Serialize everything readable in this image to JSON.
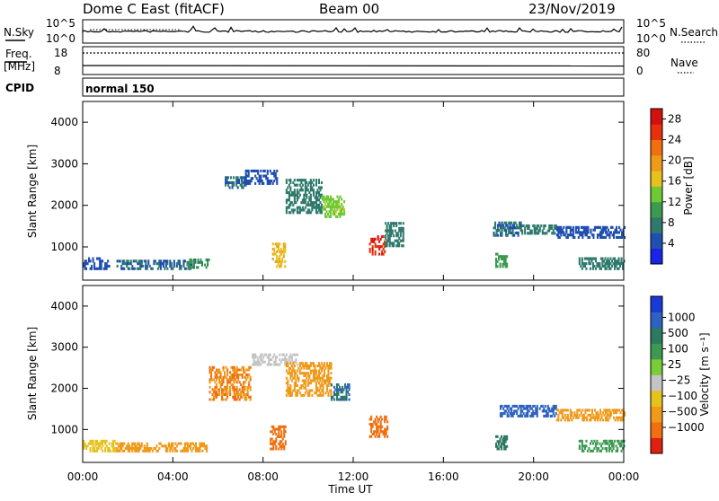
{
  "header": {
    "title": "Dome C East (fitACF)",
    "beam": "Beam 00",
    "date": "23/Nov/2019"
  },
  "sky_panel": {
    "left_label": "N.Sky",
    "right_label": "N.Search",
    "left_ticks": [
      "10^5",
      "10^0"
    ],
    "right_ticks": [
      "10^5",
      "10^0"
    ]
  },
  "freq_panel": {
    "left_label_line1": "Freq.",
    "left_label_line2": "[MHz]",
    "right_label": "Nave",
    "left_ticks": [
      "18",
      "8"
    ],
    "right_ticks": [
      "80",
      "0"
    ]
  },
  "cpid_panel": {
    "label": "CPID",
    "program": "normal 150"
  },
  "colors": {
    "power_scale": [
      "#1a24e6",
      "#1f4fb0",
      "#2f7a6c",
      "#3c9a50",
      "#70c832",
      "#e6c21c",
      "#f09a1a",
      "#f07010",
      "#e8300c",
      "#d41010"
    ],
    "velocity_scale": [
      "#1a3ad6",
      "#2f62c0",
      "#2c7a62",
      "#3c9a50",
      "#7acd38",
      "#c4c4c4",
      "#e6c21c",
      "#f09a1a",
      "#f07010",
      "#e02010"
    ]
  },
  "chart_data": [
    {
      "type": "heatmap",
      "name": "power",
      "ylabel": "Slant Range [km]",
      "ylim": [
        200,
        4500
      ],
      "xlim": [
        0,
        24
      ],
      "y_ticks": [
        "1000",
        "2000",
        "3000",
        "4000"
      ],
      "colorbar_label": "Power [dB]",
      "colorbar_ticks": [
        "4",
        "8",
        "12",
        "16",
        "20",
        "24",
        "28"
      ],
      "colorbar_range": [
        0,
        30
      ],
      "echo_regions": [
        {
          "t0": 0.0,
          "t1": 1.2,
          "r0": 450,
          "r1": 700,
          "value": 5
        },
        {
          "t0": 1.5,
          "t1": 4.8,
          "r0": 450,
          "r1": 650,
          "value": 6
        },
        {
          "t0": 4.6,
          "t1": 5.6,
          "r0": 480,
          "r1": 680,
          "value": 9
        },
        {
          "t0": 6.3,
          "t1": 7.2,
          "r0": 2400,
          "r1": 2650,
          "value": 6
        },
        {
          "t0": 7.2,
          "t1": 8.6,
          "r0": 2500,
          "r1": 2850,
          "value": 5
        },
        {
          "t0": 8.4,
          "t1": 9.0,
          "r0": 500,
          "r1": 1100,
          "value": 18
        },
        {
          "t0": 9.0,
          "t1": 10.6,
          "r0": 1800,
          "r1": 2600,
          "value": 8
        },
        {
          "t0": 10.6,
          "t1": 11.6,
          "r0": 1700,
          "r1": 2200,
          "value": 14
        },
        {
          "t0": 12.7,
          "t1": 13.4,
          "r0": 800,
          "r1": 1250,
          "value": 26
        },
        {
          "t0": 13.4,
          "t1": 14.2,
          "r0": 1000,
          "r1": 1600,
          "value": 8
        },
        {
          "t0": 18.2,
          "t1": 19.4,
          "r0": 1250,
          "r1": 1600,
          "value": 6
        },
        {
          "t0": 19.4,
          "t1": 21.0,
          "r0": 1300,
          "r1": 1500,
          "value": 7
        },
        {
          "t0": 21.0,
          "t1": 24.0,
          "r0": 1200,
          "r1": 1450,
          "value": 5
        },
        {
          "t0": 22.0,
          "t1": 24.0,
          "r0": 450,
          "r1": 700,
          "value": 7
        },
        {
          "t0": 18.3,
          "t1": 18.8,
          "r0": 500,
          "r1": 850,
          "value": 10
        }
      ]
    },
    {
      "type": "heatmap",
      "name": "velocity",
      "ylabel": "Slant Range [km]",
      "xlabel": "Time UT",
      "ylim": [
        200,
        4500
      ],
      "xlim": [
        0,
        24
      ],
      "x_ticks": [
        "00:00",
        "04:00",
        "08:00",
        "12:00",
        "16:00",
        "20:00",
        "00:00"
      ],
      "y_ticks": [
        "1000",
        "2000",
        "3000",
        "4000"
      ],
      "colorbar_label": "Velocity [m s⁻¹]",
      "colorbar_ticks": [
        "1000",
        "500",
        "100",
        "25",
        "−25",
        "−100",
        "−500",
        "−1000"
      ],
      "echo_regions": [
        {
          "t0": 0.0,
          "t1": 1.5,
          "r0": 450,
          "r1": 700,
          "value": -50
        },
        {
          "t0": 1.5,
          "t1": 5.5,
          "r0": 450,
          "r1": 650,
          "value": -120
        },
        {
          "t0": 5.6,
          "t1": 7.4,
          "r0": 1700,
          "r1": 2500,
          "value": -300
        },
        {
          "t0": 7.5,
          "t1": 9.5,
          "r0": 2550,
          "r1": 2850,
          "value": 0
        },
        {
          "t0": 8.3,
          "t1": 9.0,
          "r0": 500,
          "r1": 1100,
          "value": -500
        },
        {
          "t0": 9.0,
          "t1": 11.0,
          "r0": 1800,
          "r1": 2600,
          "value": -200
        },
        {
          "t0": 11.0,
          "t1": 11.8,
          "r0": 1700,
          "r1": 2100,
          "value": 300
        },
        {
          "t0": 12.7,
          "t1": 13.5,
          "r0": 800,
          "r1": 1300,
          "value": -400
        },
        {
          "t0": 18.3,
          "t1": 18.8,
          "r0": 500,
          "r1": 850,
          "value": 150
        },
        {
          "t0": 18.5,
          "t1": 21.0,
          "r0": 1300,
          "r1": 1600,
          "value": 600
        },
        {
          "t0": 21.0,
          "t1": 24.0,
          "r0": 1200,
          "r1": 1450,
          "value": -120
        },
        {
          "t0": 22.0,
          "t1": 24.0,
          "r0": 450,
          "r1": 700,
          "value": 80
        }
      ]
    }
  ]
}
